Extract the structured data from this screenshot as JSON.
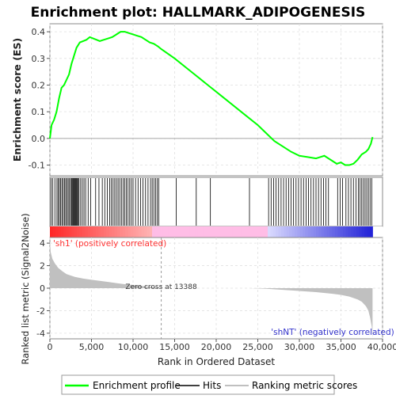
{
  "chart_data": {
    "type": "line",
    "title": "Enrichment plot: HALLMARK_ADIPOGENESIS",
    "es_panel": {
      "ylabel": "Enrichment score (ES)",
      "ylim": [
        -0.14,
        0.43
      ],
      "yticks": [
        -0.1,
        0.0,
        0.1,
        0.2,
        0.3,
        0.4
      ],
      "ytick_labels": [
        "-0.1",
        "0.0",
        "0.1",
        "0.2",
        "0.3",
        "0.4"
      ],
      "grid": true,
      "series": [
        {
          "name": "Enrichment profile",
          "color": "#00ff00",
          "x": [
            0,
            200,
            500,
            800,
            1100,
            1400,
            1700,
            2000,
            2300,
            2600,
            2900,
            3200,
            3600,
            4000,
            4400,
            4800,
            5200,
            5600,
            6000,
            6500,
            7000,
            7500,
            8000,
            8500,
            9000,
            9500,
            10000,
            10500,
            11000,
            11500,
            12000,
            12500,
            13000,
            13388,
            15000,
            17000,
            19000,
            21000,
            23000,
            25000,
            26000,
            27000,
            28000,
            29000,
            30000,
            31000,
            32000,
            32500,
            33000,
            33500,
            34000,
            34500,
            35000,
            35500,
            36000,
            36500,
            37000,
            37500,
            38000,
            38300,
            38600,
            38800
          ],
          "y": [
            0.0,
            0.05,
            0.07,
            0.1,
            0.15,
            0.19,
            0.2,
            0.22,
            0.24,
            0.28,
            0.31,
            0.34,
            0.36,
            0.365,
            0.37,
            0.38,
            0.375,
            0.37,
            0.365,
            0.37,
            0.375,
            0.38,
            0.39,
            0.4,
            0.4,
            0.395,
            0.39,
            0.385,
            0.38,
            0.37,
            0.36,
            0.355,
            0.345,
            0.335,
            0.3,
            0.25,
            0.2,
            0.15,
            0.1,
            0.05,
            0.02,
            -0.01,
            -0.03,
            -0.05,
            -0.065,
            -0.07,
            -0.075,
            -0.07,
            -0.065,
            -0.075,
            -0.085,
            -0.095,
            -0.09,
            -0.1,
            -0.1,
            -0.095,
            -0.08,
            -0.06,
            -0.05,
            -0.04,
            -0.02,
            0.005
          ]
        }
      ]
    },
    "hits_panel": {
      "series_name": "Hits",
      "hit_positions": [
        150,
        350,
        600,
        850,
        1000,
        1150,
        1300,
        1450,
        1600,
        1750,
        1900,
        2050,
        2200,
        2350,
        2500,
        2600,
        2700,
        2800,
        2900,
        3000,
        3100,
        3200,
        3300,
        3400,
        3500,
        3700,
        3900,
        4100,
        4300,
        4600,
        4900,
        5500,
        5900,
        6300,
        6600,
        6900,
        7200,
        7400,
        7600,
        7800,
        8000,
        8200,
        8400,
        8600,
        8800,
        9000,
        9200,
        9400,
        9600,
        9800,
        10000,
        10300,
        10600,
        10900,
        11200,
        11500,
        11800,
        12100,
        12300,
        12500,
        12700,
        12900,
        13100,
        15200,
        17600,
        19300,
        24000,
        26300,
        26600,
        26900,
        27200,
        27500,
        27800,
        28100,
        28400,
        28700,
        29000,
        29300,
        29600,
        29900,
        30200,
        30500,
        30800,
        31100,
        31400,
        31700,
        32000,
        32300,
        32600,
        32900,
        33200,
        33500,
        34600,
        34900,
        35200,
        35600,
        35900,
        36200,
        36500,
        36800,
        37100,
        37300,
        37500,
        37700,
        37900,
        38100,
        38300,
        38500,
        38700
      ]
    },
    "rank_panel": {
      "ylabel": "Ranked list metric (Signal2Noise)",
      "xlabel": "Rank in Ordered Dataset",
      "ylim": [
        -4.5,
        4.5
      ],
      "yticks": [
        -4,
        -2,
        0,
        2,
        4
      ],
      "ytick_labels": [
        "-4",
        "-2",
        "0",
        "2",
        "4"
      ],
      "xlim": [
        0,
        40000
      ],
      "xticks": [
        0,
        5000,
        10000,
        15000,
        20000,
        25000,
        30000,
        35000,
        40000
      ],
      "xtick_labels": [
        "0",
        "5,000",
        "10,000",
        "15,000",
        "20,000",
        "25,000",
        "30,000",
        "35,000",
        "40,000"
      ],
      "series_name": "Ranking metric scores",
      "metric_x": [
        0,
        100,
        300,
        600,
        1000,
        1500,
        2000,
        3000,
        4000,
        5000,
        6000,
        7000,
        8000,
        9000,
        10000,
        11000,
        12000,
        13000,
        13388,
        14000,
        16000,
        18000,
        20000,
        22000,
        24000,
        26000,
        28000,
        30000,
        32000,
        34000,
        35000,
        36000,
        37000,
        37500,
        38000,
        38300,
        38500,
        38700,
        38800
      ],
      "metric_y": [
        4.2,
        3.2,
        2.6,
        2.2,
        1.8,
        1.5,
        1.25,
        1.0,
        0.85,
        0.75,
        0.65,
        0.55,
        0.45,
        0.35,
        0.28,
        0.2,
        0.12,
        0.05,
        0.0,
        0.0,
        0.0,
        0.0,
        0.0,
        0.0,
        0.0,
        -0.05,
        -0.15,
        -0.25,
        -0.35,
        -0.5,
        -0.6,
        -0.75,
        -1.0,
        -1.2,
        -1.6,
        -2.0,
        -2.6,
        -3.4,
        -4.4
      ],
      "zero_cross": 13388,
      "zero_cross_label": "Zero cross at 13388",
      "pos_label": "'sh1' (positively correlated)",
      "neg_label": "'shNT' (negatively correlated)",
      "pos_color": "#ff3333",
      "neg_color": "#3333cc"
    },
    "legend": {
      "placement": "bottom",
      "entries": [
        {
          "label": "Enrichment profile",
          "color": "#00ff00"
        },
        {
          "label": "Hits",
          "color": "#000000"
        },
        {
          "label": "Ranking metric scores",
          "color": "#c0c0c0"
        }
      ]
    }
  }
}
